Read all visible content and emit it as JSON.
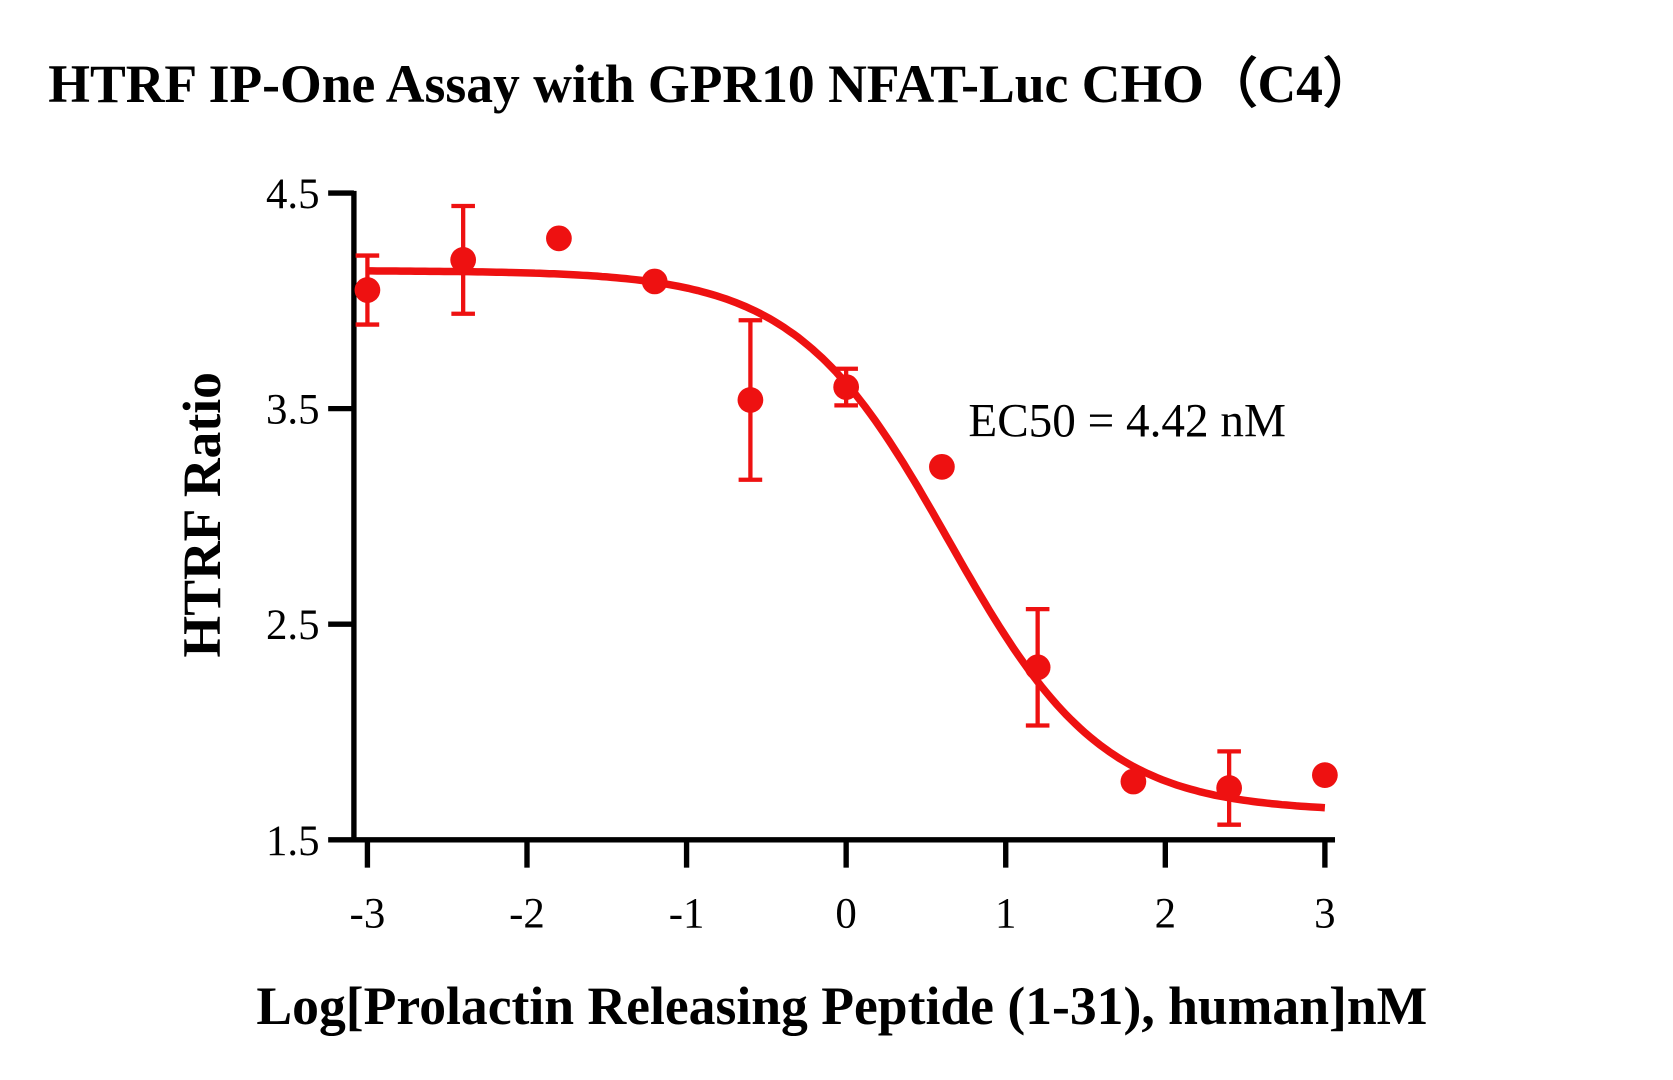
{
  "chart_data": {
    "type": "scatter",
    "title": "HTRF IP-One Assay with GPR10 NFAT-Luc CHO（C4）",
    "xlabel": "Log[Prolactin Releasing Peptide (1-31), human]nM",
    "ylabel": "HTRF Ratio",
    "xlim": [
      -3.1,
      3.05
    ],
    "ylim": [
      1.5,
      4.5
    ],
    "xticks": [
      -3,
      -2,
      -1,
      0,
      1,
      2,
      3
    ],
    "xtick_labels": [
      "-3",
      "-2",
      "-1",
      "0",
      "1",
      "2",
      "3"
    ],
    "yticks": [
      1.5,
      2.5,
      3.5,
      4.5
    ],
    "ytick_labels": [
      "1.5",
      "2.5",
      "3.5",
      "4.5"
    ],
    "grid": false,
    "color": "#ee1111",
    "points": [
      {
        "x": -3.0,
        "y": 4.05,
        "err": 0.16
      },
      {
        "x": -2.4,
        "y": 4.19,
        "err": 0.25
      },
      {
        "x": -1.8,
        "y": 4.29,
        "err": 0
      },
      {
        "x": -1.2,
        "y": 4.09,
        "err": 0
      },
      {
        "x": -0.6,
        "y": 3.54,
        "err": 0.37
      },
      {
        "x": 0.0,
        "y": 3.6,
        "err": 0.085
      },
      {
        "x": 0.6,
        "y": 3.23,
        "err": 0
      },
      {
        "x": 1.2,
        "y": 2.3,
        "err": 0.27
      },
      {
        "x": 1.8,
        "y": 1.77,
        "err": 0
      },
      {
        "x": 2.4,
        "y": 1.74,
        "err": 0.17
      },
      {
        "x": 3.0,
        "y": 1.8,
        "err": 0
      }
    ],
    "fit": {
      "model": "four-parameter logistic",
      "top": 4.14,
      "bottom": 1.63,
      "logEC50": 0.645,
      "hill_slope": -0.9
    },
    "annotation": "EC50 = 4.42 nM"
  }
}
